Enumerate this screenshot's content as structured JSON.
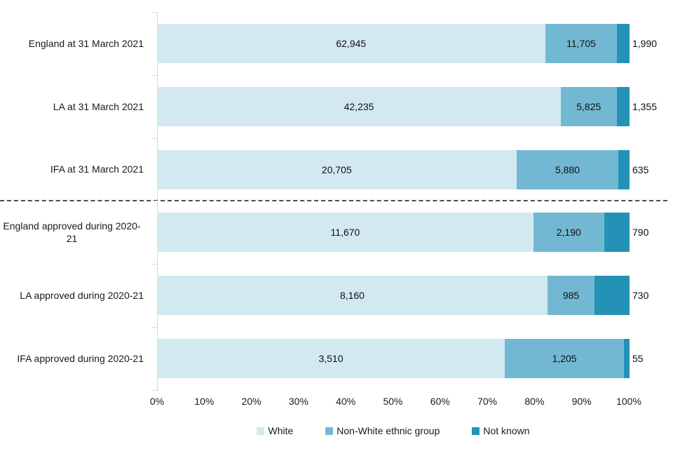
{
  "chart_data": {
    "type": "bar",
    "subtype": "stacked-100-horizontal",
    "title": "",
    "xlabel": "",
    "ylabel": "",
    "xlim": [
      0,
      100
    ],
    "grid": false,
    "legend_position": "bottom",
    "categories": [
      "England at 31 March 2021",
      "LA at 31 March 2021",
      "IFA at 31 March 2021",
      "England approved during 2020-21",
      "LA approved during 2020-21",
      "IFA approved during 2020-21"
    ],
    "series": [
      {
        "name": "White",
        "color": "#d3e9f1",
        "values": [
          62945,
          42235,
          20705,
          11670,
          8160,
          3510
        ],
        "labels": [
          "62,945",
          "42,235",
          "20,705",
          "11,670",
          "8,160",
          "3,510"
        ],
        "label_placement": "inside"
      },
      {
        "name": "Non-White ethnic group",
        "color": "#73b8d3",
        "values": [
          11705,
          5825,
          5880,
          2190,
          985,
          1205
        ],
        "labels": [
          "11,705",
          "5,825",
          "5,880",
          "2,190",
          "985",
          "1,205"
        ],
        "label_placement": "inside"
      },
      {
        "name": "Not known",
        "color": "#2492b6",
        "values": [
          1990,
          1355,
          635,
          790,
          730,
          55
        ],
        "labels": [
          "1,990",
          "1,355",
          "635",
          "790",
          "730",
          "55"
        ],
        "label_placement": "outside-right"
      }
    ],
    "x_ticks": [
      "0%",
      "10%",
      "20%",
      "30%",
      "40%",
      "50%",
      "60%",
      "70%",
      "80%",
      "90%",
      "100%"
    ],
    "separator": {
      "style": "dashed",
      "color": "#4d4d4d",
      "after_category_index": 2
    },
    "legend": [
      "White",
      "Non-White ethnic group",
      "Not known"
    ],
    "axis_color": "#d9d9d9"
  }
}
